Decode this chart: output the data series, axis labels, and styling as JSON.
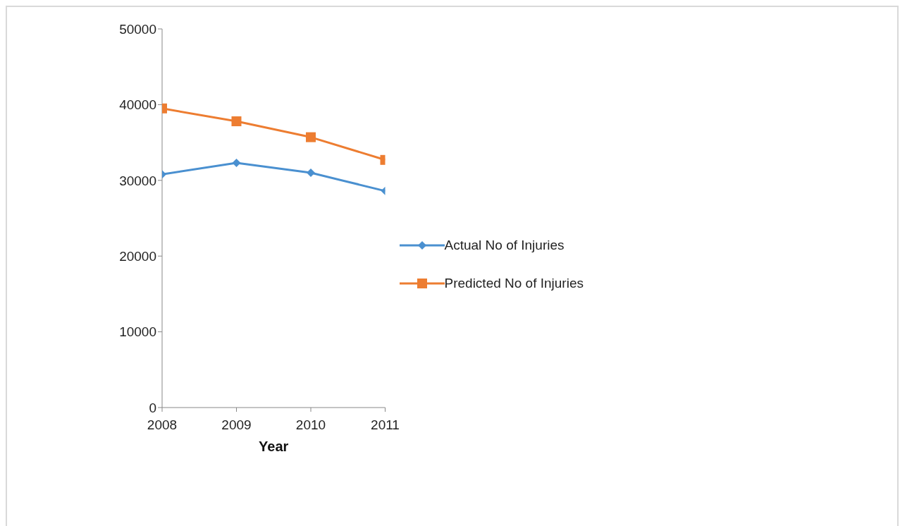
{
  "chart_data": {
    "type": "line",
    "xlabel": "Year",
    "categories": [
      "2008",
      "2009",
      "2010",
      "2011"
    ],
    "series": [
      {
        "name": "Actual No of Injuries",
        "color": "#4a90d0",
        "marker": "diamond",
        "values": [
          30800,
          32300,
          31000,
          28600
        ]
      },
      {
        "name": "Predicted No of Injuries",
        "color": "#ed7d31",
        "marker": "square",
        "values": [
          39500,
          37800,
          35700,
          32700
        ]
      }
    ],
    "ylim": [
      0,
      50000
    ],
    "yticks": [
      0,
      10000,
      20000,
      30000,
      40000,
      50000
    ],
    "grid": false,
    "legend": "right",
    "line_style": "solid"
  }
}
